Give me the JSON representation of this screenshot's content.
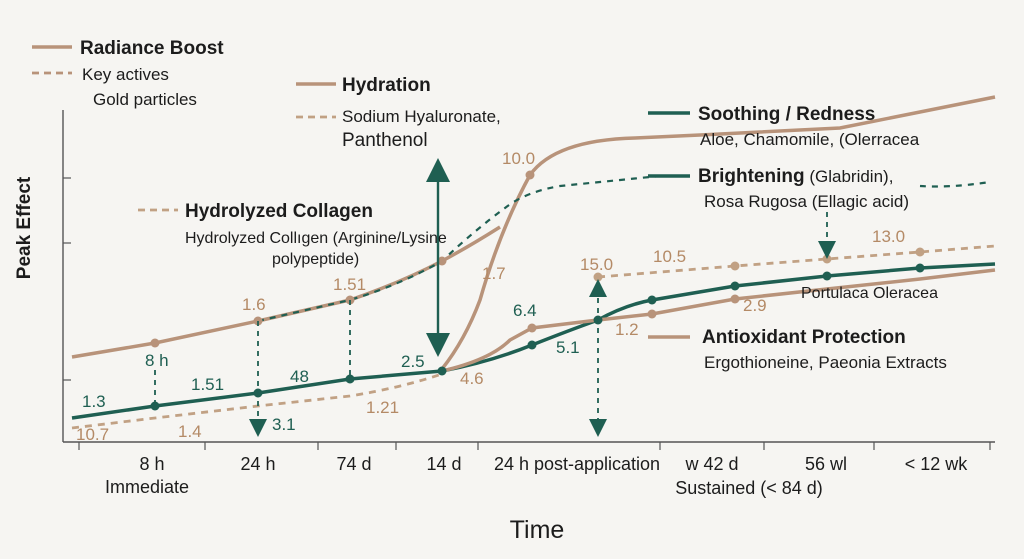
{
  "chart_data": {
    "type": "line",
    "title": "",
    "xlabel": "Time",
    "ylabel": "Peak Effect",
    "categories": [
      "8 h",
      "24 h",
      "74 d",
      "14 d",
      "24 h post-application",
      "w 42 d",
      "56 wl",
      "< 12 wk"
    ],
    "category_sublabels": [
      "Immediate",
      "Sustained (< 84 d)"
    ],
    "grid": false,
    "legend_position": "top-left",
    "colors": {
      "tan": "#b48f6e",
      "green": "#1f5f52",
      "axis": "#555555"
    },
    "legend": {
      "radiance": {
        "title": "Radiance Boost",
        "dash_label": "Key actives",
        "dash_sub": "Gold particles"
      },
      "hydration": {
        "title": "Hydration",
        "sub1": "Sodium Hyaluronate,",
        "sub2": "Panthenol"
      },
      "collagen": {
        "title": "Hydrolyzed Collagen",
        "sub1": "Hydrolyzed Collıgen (Arginine/Lysine",
        "sub2": "polypeptide)"
      },
      "soothing": {
        "title": "Soothing / Redness",
        "sub": "Aloe, Chamomile, (Olerracea"
      },
      "brightening": {
        "title": "Brightening",
        "title_rest": " (Glabridin),",
        "sub": "Rosa Rugosa (Ellagic acid)"
      },
      "antioxidant": {
        "title": "Antioxidant Protection",
        "sub": "Ergothioneine, Paeonia Extracts"
      },
      "portulaca": "Portulaca Oleracea"
    },
    "annotations": {
      "a_10_7": "10.7",
      "a_1_4": "1.4",
      "a_1_3": "1.3",
      "a_8h": "8 h",
      "a_1_51a": "1.51",
      "a_1_6": "1.6",
      "a_3_1": "3.1",
      "a_48": "48",
      "a_1_51b": "1.51",
      "a_1_21": "1.21",
      "a_2_5": "2.5",
      "a_4_6": "4.6",
      "a_1_7": "1.7",
      "a_10_0": "10.0",
      "a_6_4": "6.4",
      "a_5_1": "5.1",
      "a_15_0": "15.0",
      "a_1_2": "1.2",
      "a_10_5": "10.5",
      "a_2_9": "2.9",
      "a_13_0": "13.0"
    }
  }
}
